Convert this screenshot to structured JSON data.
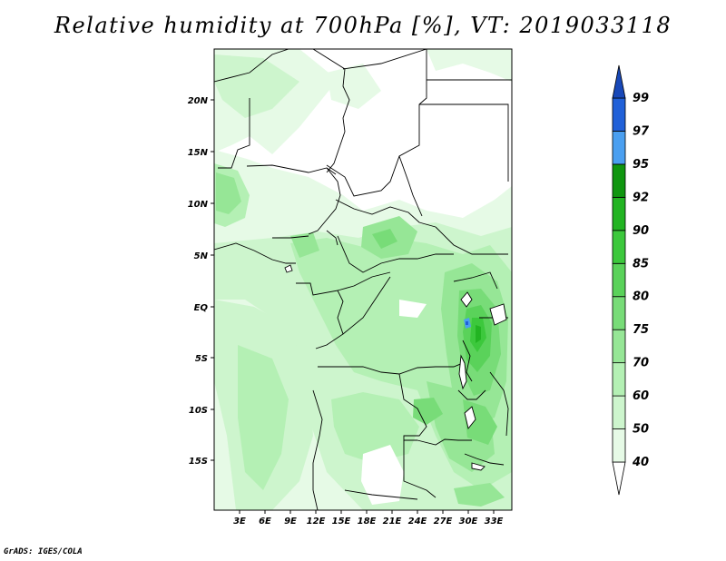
{
  "title": "Relative humidity at 700hPa [%], VT: 2019033118",
  "credit": "GrADS: IGES/COLA",
  "map": {
    "lat_ticks": [
      "20N",
      "15N",
      "10N",
      "5N",
      "EQ",
      "5S",
      "10S",
      "15S"
    ],
    "lon_ticks": [
      "3E",
      "6E",
      "9E",
      "12E",
      "15E",
      "18E",
      "21E",
      "24E",
      "27E",
      "30E",
      "33E"
    ]
  },
  "colorbar": {
    "levels": [
      "40",
      "50",
      "60",
      "70",
      "75",
      "80",
      "85",
      "90",
      "92",
      "95",
      "97",
      "99"
    ],
    "colors": [
      "#ffffff",
      "#e6fae6",
      "#cdf5cd",
      "#b4f0b4",
      "#96e696",
      "#78dc78",
      "#5ad25a",
      "#3cc83c",
      "#22b422",
      "#0f960f",
      "#4a9ff0",
      "#2060d8",
      "#1848b8"
    ]
  }
}
